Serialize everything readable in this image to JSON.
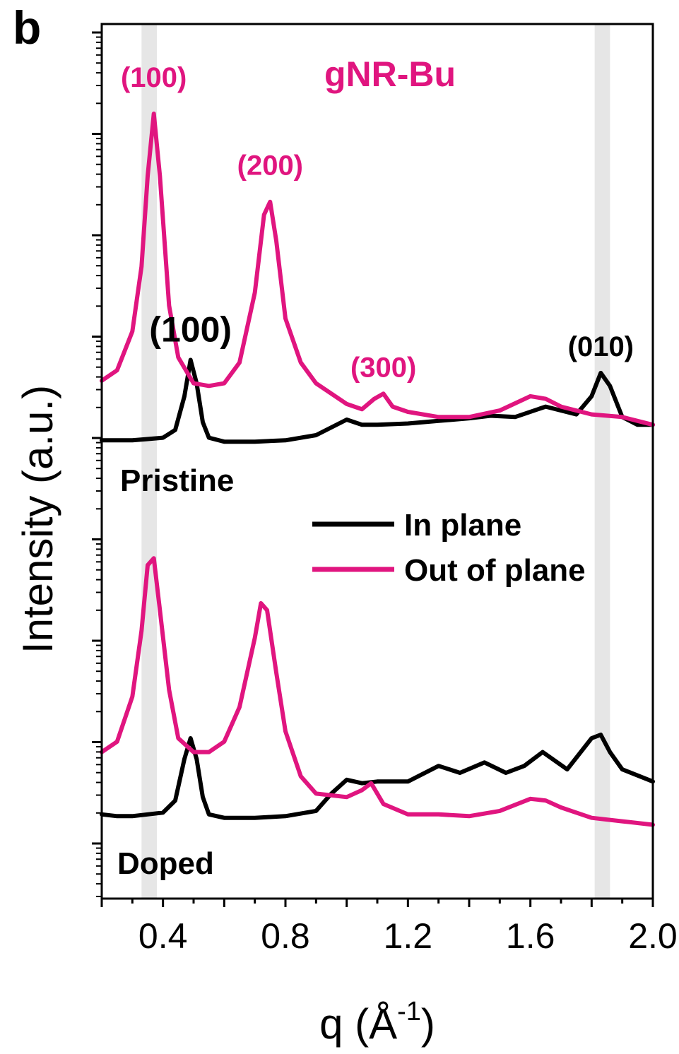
{
  "panel_label": "b",
  "chart_data": {
    "type": "line",
    "title": "gNR-Bu",
    "xlabel": "q (Å",
    "xlabel_sup": "-1",
    "xlabel_close": ")",
    "ylabel": "Intensity (a.u.)",
    "xlim": [
      0.2,
      2.0
    ],
    "x_ticks": [
      "0.4",
      "0.8",
      "1.2",
      "1.6",
      "2.0"
    ],
    "x_tick_values": [
      0.4,
      0.8,
      1.2,
      1.6,
      2.0
    ],
    "y_scale": "log",
    "y_ticks_labeled": false,
    "highlight_bands": [
      [
        0.33,
        0.38
      ],
      [
        1.81,
        1.86
      ]
    ],
    "legend": [
      {
        "name": "In plane",
        "color": "#000000"
      },
      {
        "name": "Out of plane",
        "color": "#e0157f"
      }
    ],
    "sample_labels": [
      "Pristine",
      "Doped"
    ],
    "annotations": [
      {
        "text": "(100)",
        "color": "#e0157f",
        "x": 0.37,
        "curve": "pristine_out",
        "dy": -38
      },
      {
        "text": "(200)",
        "color": "#e0157f",
        "x": 0.75,
        "curve": "pristine_out",
        "dy": -38
      },
      {
        "text": "(300)",
        "color": "#e0157f",
        "x": 1.12,
        "curve": "pristine_out",
        "dy": -24
      },
      {
        "text": "(100)",
        "color": "#000000",
        "x": 0.49,
        "curve": "pristine_in",
        "dy": -26
      },
      {
        "text": "(010)",
        "color": "#000000",
        "x": 1.83,
        "curve": "pristine_in",
        "dy": -24
      }
    ],
    "series": [
      {
        "name": "In plane",
        "sample": "Pristine",
        "color": "#000000",
        "x": [
          0.2,
          0.25,
          0.3,
          0.35,
          0.4,
          0.44,
          0.47,
          0.49,
          0.51,
          0.53,
          0.55,
          0.6,
          0.7,
          0.8,
          0.9,
          0.95,
          1.0,
          1.05,
          1.1,
          1.2,
          1.3,
          1.4,
          1.47,
          1.55,
          1.65,
          1.75,
          1.8,
          1.83,
          1.86,
          1.9,
          1.95,
          2.0
        ],
        "y": [
          4.8,
          4.8,
          4.8,
          4.85,
          4.9,
          5.2,
          6.5,
          7.9,
          7.0,
          5.5,
          4.9,
          4.75,
          4.75,
          4.8,
          5.0,
          5.3,
          5.6,
          5.4,
          5.4,
          5.45,
          5.55,
          5.65,
          5.75,
          5.7,
          6.1,
          5.8,
          6.5,
          7.4,
          6.9,
          5.7,
          5.4,
          5.4
        ]
      },
      {
        "name": "Out of plane",
        "sample": "Pristine",
        "color": "#e0157f",
        "x": [
          0.2,
          0.25,
          0.3,
          0.33,
          0.35,
          0.37,
          0.39,
          0.42,
          0.45,
          0.5,
          0.55,
          0.6,
          0.65,
          0.7,
          0.73,
          0.75,
          0.77,
          0.8,
          0.85,
          0.9,
          1.0,
          1.05,
          1.09,
          1.12,
          1.15,
          1.2,
          1.3,
          1.4,
          1.5,
          1.6,
          1.65,
          1.7,
          1.8,
          1.9,
          2.0
        ],
        "y": [
          7.1,
          7.5,
          9.0,
          11.5,
          15.0,
          17.4,
          15.0,
          10.0,
          8.0,
          7.0,
          6.9,
          7.0,
          7.8,
          10.5,
          13.5,
          14.0,
          12.5,
          9.5,
          7.8,
          7.0,
          6.2,
          6.0,
          6.4,
          6.6,
          6.1,
          5.9,
          5.7,
          5.7,
          5.95,
          6.5,
          6.4,
          6.1,
          5.8,
          5.7,
          5.4
        ]
      },
      {
        "name": "In plane",
        "sample": "Doped",
        "color": "#000000",
        "x": [
          0.2,
          0.25,
          0.3,
          0.35,
          0.4,
          0.44,
          0.47,
          0.49,
          0.51,
          0.53,
          0.55,
          0.6,
          0.7,
          0.8,
          0.9,
          0.95,
          1.0,
          1.05,
          1.1,
          1.2,
          1.3,
          1.37,
          1.45,
          1.52,
          1.58,
          1.64,
          1.72,
          1.8,
          1.83,
          1.86,
          1.9,
          2.0
        ],
        "y": [
          2.4,
          2.35,
          2.35,
          2.4,
          2.45,
          2.8,
          4.0,
          4.6,
          4.0,
          2.9,
          2.4,
          2.3,
          2.3,
          2.35,
          2.5,
          3.0,
          3.4,
          3.3,
          3.35,
          3.35,
          3.8,
          3.6,
          3.9,
          3.6,
          3.8,
          4.2,
          3.7,
          4.6,
          4.7,
          4.2,
          3.7,
          3.35
        ]
      },
      {
        "name": "Out of plane",
        "sample": "Doped",
        "color": "#e0157f",
        "x": [
          0.2,
          0.25,
          0.3,
          0.33,
          0.35,
          0.37,
          0.39,
          0.42,
          0.45,
          0.5,
          0.55,
          0.6,
          0.65,
          0.7,
          0.72,
          0.74,
          0.77,
          0.8,
          0.85,
          0.9,
          1.0,
          1.05,
          1.08,
          1.12,
          1.2,
          1.3,
          1.4,
          1.5,
          1.6,
          1.65,
          1.7,
          1.8,
          1.9,
          2.0
        ],
        "y": [
          4.2,
          4.5,
          5.8,
          7.7,
          9.6,
          9.8,
          8.3,
          6.0,
          4.6,
          4.2,
          4.2,
          4.5,
          5.5,
          7.5,
          8.5,
          8.3,
          6.5,
          4.8,
          3.5,
          3.0,
          2.9,
          3.1,
          3.3,
          2.7,
          2.4,
          2.4,
          2.35,
          2.5,
          2.85,
          2.8,
          2.6,
          2.3,
          2.2,
          2.1
        ]
      }
    ]
  }
}
